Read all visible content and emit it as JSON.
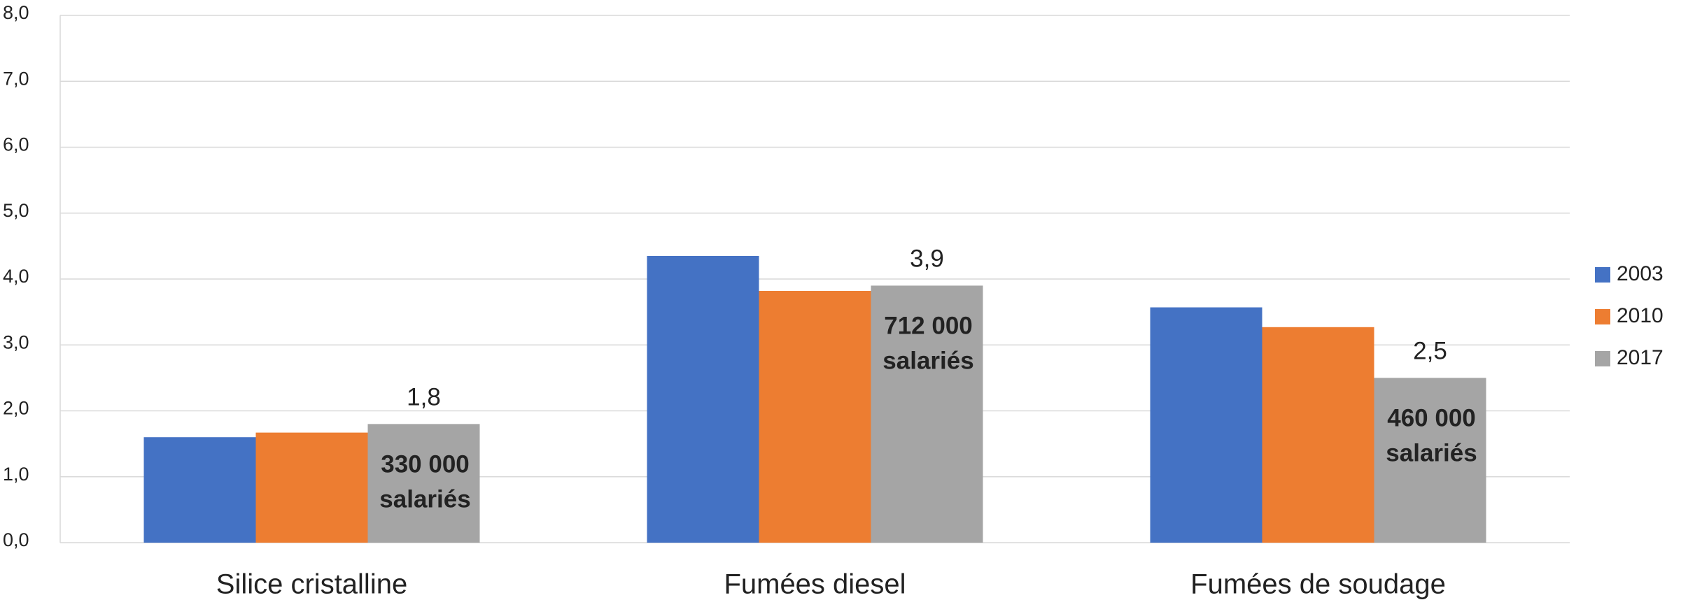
{
  "chart_data": {
    "type": "bar",
    "categories": [
      "Silice cristalline",
      "Fumées diesel",
      "Fumées de soudage"
    ],
    "series": [
      {
        "name": "2003",
        "color": "#4472c4",
        "values": [
          1.6,
          4.35,
          3.57
        ]
      },
      {
        "name": "2010",
        "color": "#ed7d31",
        "values": [
          1.67,
          3.82,
          3.27
        ]
      },
      {
        "name": "2017",
        "color": "#a5a5a5",
        "values": [
          1.8,
          3.9,
          2.5
        ],
        "value_labels": [
          "1,8",
          "3,9",
          "2,5"
        ],
        "annotations": [
          [
            "330 000",
            "salariés"
          ],
          [
            "712 000",
            "salariés"
          ],
          [
            "460 000",
            "salariés"
          ]
        ]
      }
    ],
    "ylim": [
      0,
      8
    ],
    "yticks": [
      {
        "value": 0,
        "label": "0,0"
      },
      {
        "value": 1,
        "label": "1,0"
      },
      {
        "value": 2,
        "label": "2,0"
      },
      {
        "value": 3,
        "label": "3,0"
      },
      {
        "value": 4,
        "label": "4,0"
      },
      {
        "value": 5,
        "label": "5,0"
      },
      {
        "value": 6,
        "label": "6,0"
      },
      {
        "value": 7,
        "label": "7,0"
      },
      {
        "value": 8,
        "label": "8,0"
      }
    ],
    "grid": true,
    "legend": "right"
  }
}
